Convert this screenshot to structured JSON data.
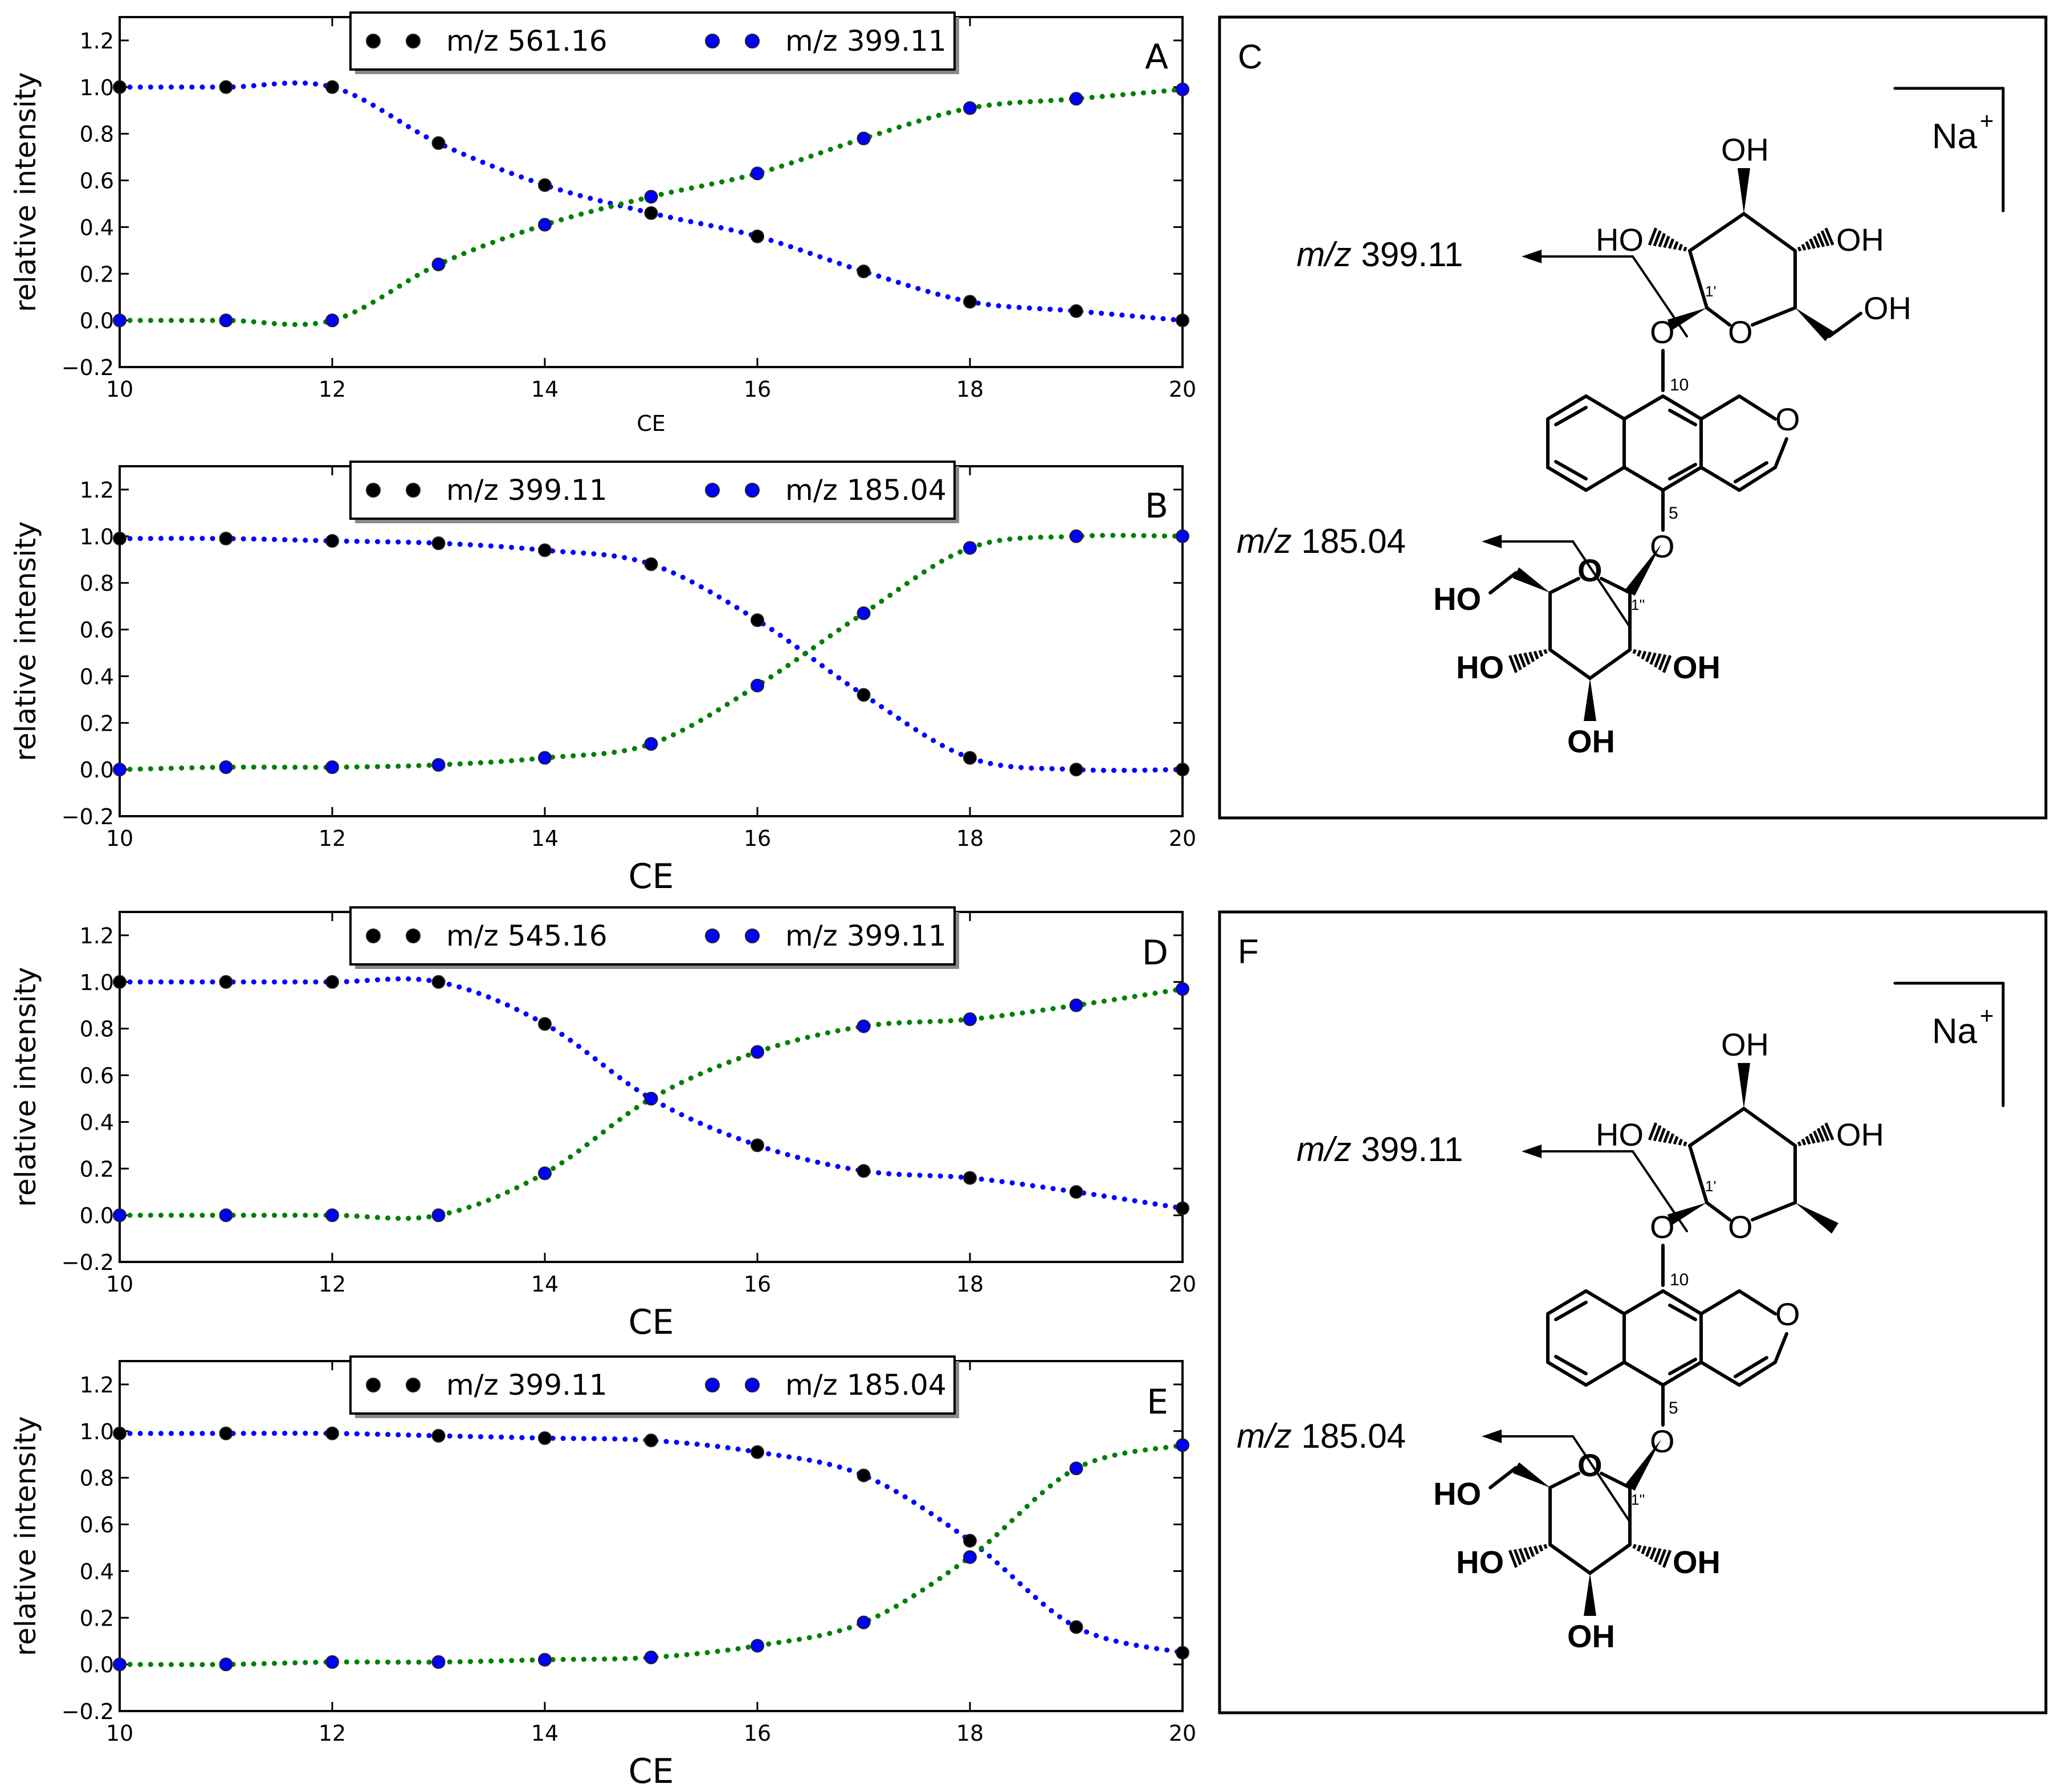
{
  "chart_data": [
    {
      "panel": "A",
      "type": "line",
      "x": [
        10,
        11,
        12,
        13,
        14,
        15,
        16,
        17,
        18,
        19,
        20
      ],
      "xlabel": "CE",
      "ylabel": "relative intensity",
      "xlim": [
        10,
        20
      ],
      "ylim": [
        -0.2,
        1.3
      ],
      "xticks": [
        "10",
        "12",
        "14",
        "16",
        "18",
        "20"
      ],
      "yticks": [
        "−0.2",
        "0.0",
        "0.2",
        "0.4",
        "0.6",
        "0.8",
        "1.0",
        "1.2"
      ],
      "legend": [
        "m/z 561.16",
        "m/z 399.11"
      ],
      "legend_placement": "top-center",
      "series": [
        {
          "name": "m/z 561.16",
          "line_color": "#0000ff",
          "marker_color": "#000000",
          "values": [
            1.0,
            1.0,
            1.0,
            0.76,
            0.58,
            0.46,
            0.36,
            0.21,
            0.08,
            0.04,
            0.0
          ]
        },
        {
          "name": "m/z 399.11",
          "line_color": "#008000",
          "marker_color": "#0000ff",
          "values": [
            0.0,
            0.0,
            0.0,
            0.24,
            0.41,
            0.53,
            0.63,
            0.78,
            0.91,
            0.95,
            0.99
          ]
        }
      ]
    },
    {
      "panel": "B",
      "type": "line",
      "x": [
        10,
        11,
        12,
        13,
        14,
        15,
        16,
        17,
        18,
        19,
        20
      ],
      "xlabel": "CE",
      "ylabel": "relative intensity",
      "xlim": [
        10,
        20
      ],
      "ylim": [
        -0.2,
        1.3
      ],
      "xticks": [
        "10",
        "12",
        "14",
        "16",
        "18",
        "20"
      ],
      "yticks": [
        "−0.2",
        "0.0",
        "0.2",
        "0.4",
        "0.6",
        "0.8",
        "1.0",
        "1.2"
      ],
      "legend": [
        "m/z 399.11",
        "m/z 185.04"
      ],
      "legend_placement": "top-center",
      "series": [
        {
          "name": "m/z 399.11",
          "line_color": "#0000ff",
          "marker_color": "#000000",
          "values": [
            0.99,
            0.99,
            0.98,
            0.97,
            0.94,
            0.88,
            0.64,
            0.32,
            0.05,
            0.0,
            0.0
          ]
        },
        {
          "name": "m/z 185.04",
          "line_color": "#008000",
          "marker_color": "#0000ff",
          "values": [
            0.0,
            0.01,
            0.01,
            0.02,
            0.05,
            0.11,
            0.36,
            0.67,
            0.95,
            1.0,
            1.0
          ]
        }
      ]
    },
    {
      "panel": "D",
      "type": "line",
      "x": [
        10,
        11,
        12,
        13,
        14,
        15,
        16,
        17,
        18,
        19,
        20
      ],
      "xlabel": "CE",
      "ylabel": "relative intensity",
      "xlim": [
        10,
        20
      ],
      "ylim": [
        -0.2,
        1.3
      ],
      "xticks": [
        "10",
        "12",
        "14",
        "16",
        "18",
        "20"
      ],
      "yticks": [
        "−0.2",
        "0.0",
        "0.2",
        "0.4",
        "0.6",
        "0.8",
        "1.0",
        "1.2"
      ],
      "legend": [
        "m/z 545.16",
        "m/z 399.11"
      ],
      "legend_placement": "top-center",
      "series": [
        {
          "name": "m/z 545.16",
          "line_color": "#0000ff",
          "marker_color": "#000000",
          "values": [
            1.0,
            1.0,
            1.0,
            1.0,
            0.82,
            0.5,
            0.3,
            0.19,
            0.16,
            0.1,
            0.03
          ]
        },
        {
          "name": "m/z 399.11",
          "line_color": "#008000",
          "marker_color": "#0000ff",
          "values": [
            0.0,
            0.0,
            0.0,
            0.0,
            0.18,
            0.5,
            0.7,
            0.81,
            0.84,
            0.9,
            0.97
          ]
        }
      ]
    },
    {
      "panel": "E",
      "type": "line",
      "x": [
        10,
        11,
        12,
        13,
        14,
        15,
        16,
        17,
        18,
        19,
        20
      ],
      "xlabel": "CE",
      "ylabel": "relative intensity",
      "xlim": [
        10,
        20
      ],
      "ylim": [
        -0.2,
        1.3
      ],
      "xticks": [
        "10",
        "12",
        "14",
        "16",
        "18",
        "20"
      ],
      "yticks": [
        "−0.2",
        "0.0",
        "0.2",
        "0.4",
        "0.6",
        "0.8",
        "1.0",
        "1.2"
      ],
      "legend": [
        "m/z 399.11",
        "m/z 185.04"
      ],
      "legend_placement": "top-center",
      "series": [
        {
          "name": "m/z 399.11",
          "line_color": "#0000ff",
          "marker_color": "#000000",
          "values": [
            0.99,
            0.99,
            0.99,
            0.98,
            0.97,
            0.96,
            0.91,
            0.81,
            0.53,
            0.16,
            0.05
          ]
        },
        {
          "name": "m/z 185.04",
          "line_color": "#008000",
          "marker_color": "#0000ff",
          "values": [
            0.0,
            0.0,
            0.01,
            0.01,
            0.02,
            0.03,
            0.08,
            0.18,
            0.46,
            0.84,
            0.94
          ]
        }
      ]
    }
  ],
  "structures": [
    {
      "panel": "C",
      "ion": "Na+",
      "fragment_labels": [
        "m/z 399.11",
        "m/z 185.04"
      ],
      "atom_labels": [
        "OH",
        "HO",
        "OH",
        "OH",
        "O",
        "O",
        "O",
        "O",
        "HO",
        "O",
        "HO",
        "OH",
        "OH"
      ],
      "position_labels": [
        "1'",
        "10",
        "5",
        "1''"
      ]
    },
    {
      "panel": "F",
      "ion": "Na+",
      "fragment_labels": [
        "m/z 399.11",
        "m/z 185.04"
      ],
      "atom_labels": [
        "OH",
        "HO",
        "OH",
        "O",
        "O",
        "O",
        "O",
        "HO",
        "O",
        "HO",
        "OH",
        "OH"
      ],
      "position_labels": [
        "1'",
        "10",
        "5",
        "1''"
      ]
    }
  ]
}
